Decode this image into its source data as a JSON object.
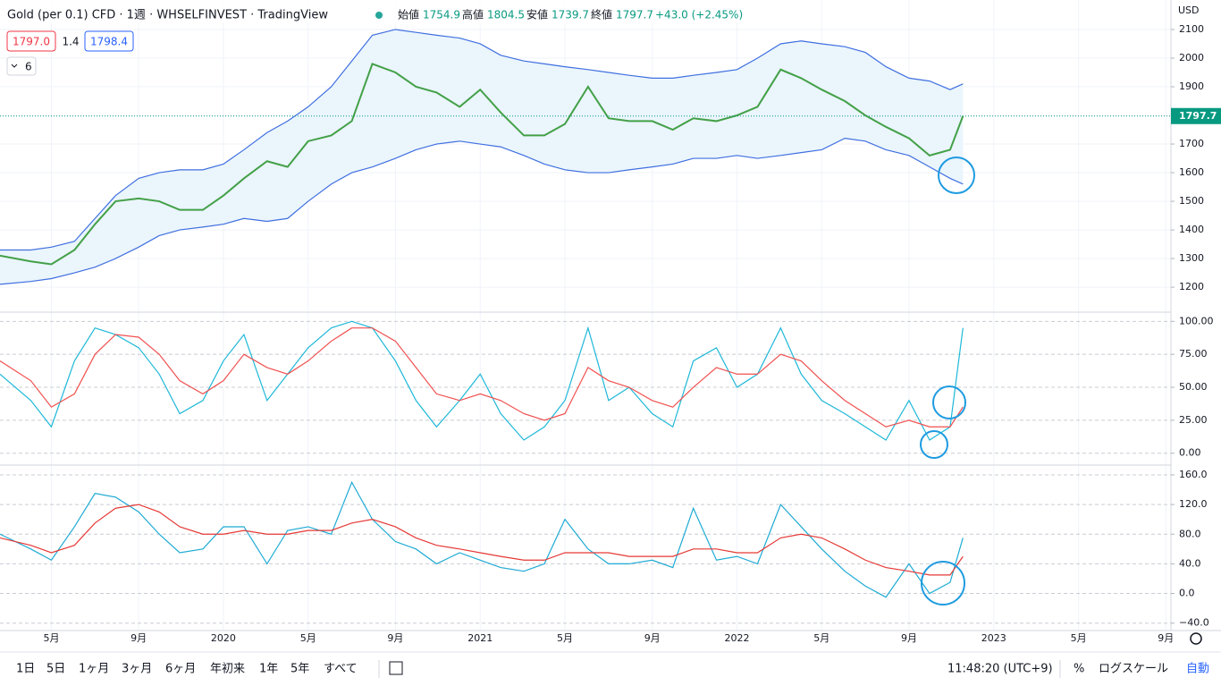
{
  "header": {
    "title": "Gold (per 0.1) CFD · 1週 · WHSELFINVEST · TradingView",
    "open_label": "始値",
    "open": "1754.9",
    "high_label": "高値",
    "high": "1804.5",
    "low_label": "安値",
    "low": "1739.7",
    "close_label": "終値",
    "close": "1797.7",
    "change": "+43.0 (+2.45%)",
    "sell": "1797.0",
    "spread": "1.4",
    "buy": "1798.4",
    "indicators": "6"
  },
  "price_axis": {
    "currency": "USD",
    "tag": "1797.7"
  },
  "toolbar": {
    "ranges": [
      "1日",
      "5日",
      "1ヶ月",
      "3ヶ月",
      "6ヶ月",
      "年初来",
      "1年",
      "5年",
      "すべて"
    ],
    "time": "11:48:20 (UTC+9)",
    "percent": "%",
    "log": "ログスケール",
    "auto": "自動"
  },
  "chart_data": [
    {
      "type": "line",
      "x": [
        2019.13,
        2019.25,
        2019.33,
        2019.42,
        2019.5,
        2019.58,
        2019.67,
        2019.75,
        2019.83,
        2019.92,
        2020.0,
        2020.08,
        2020.17,
        2020.25,
        2020.33,
        2020.42,
        2020.5,
        2020.58,
        2020.67,
        2020.75,
        2020.83,
        2020.92,
        2021.0,
        2021.08,
        2021.17,
        2021.25,
        2021.33,
        2021.42,
        2021.5,
        2021.58,
        2021.67,
        2021.75,
        2021.83,
        2021.92,
        2022.0,
        2022.08,
        2022.17,
        2022.25,
        2022.33,
        2022.42,
        2022.5,
        2022.58,
        2022.67,
        2022.75,
        2022.83,
        2022.88
      ],
      "series": [
        {
          "color": "#43a047",
          "values": [
            1310,
            1290,
            1280,
            1330,
            1420,
            1500,
            1510,
            1500,
            1470,
            1470,
            1520,
            1580,
            1640,
            1620,
            1710,
            1730,
            1780,
            1980,
            1950,
            1900,
            1880,
            1830,
            1890,
            1810,
            1730,
            1730,
            1770,
            1900,
            1790,
            1780,
            1780,
            1750,
            1790,
            1780,
            1800,
            1830,
            1960,
            1930,
            1890,
            1850,
            1800,
            1760,
            1720,
            1660,
            1680,
            1797.7
          ]
        },
        {
          "color": "#3f6fe0",
          "values": [
            1330,
            1330,
            1340,
            1360,
            1440,
            1520,
            1580,
            1600,
            1610,
            1610,
            1630,
            1680,
            1740,
            1780,
            1830,
            1900,
            1990,
            2080,
            2100,
            2090,
            2080,
            2070,
            2050,
            2010,
            1990,
            1980,
            1970,
            1960,
            1950,
            1940,
            1930,
            1930,
            1940,
            1950,
            1960,
            2000,
            2050,
            2060,
            2050,
            2040,
            2020,
            1970,
            1930,
            1920,
            1890,
            1910
          ]
        },
        {
          "color": "#3f6fe0",
          "values": [
            1210,
            1220,
            1230,
            1250,
            1270,
            1300,
            1340,
            1380,
            1400,
            1410,
            1420,
            1440,
            1430,
            1440,
            1500,
            1560,
            1600,
            1620,
            1650,
            1680,
            1700,
            1710,
            1700,
            1690,
            1660,
            1630,
            1610,
            1600,
            1600,
            1610,
            1620,
            1630,
            1650,
            1650,
            1660,
            1650,
            1660,
            1670,
            1680,
            1720,
            1710,
            1680,
            1660,
            1620,
            1580,
            1560
          ]
        }
      ],
      "band_color": "#eaf5fc",
      "xlim": [
        2019.13,
        2023.69
      ],
      "ylim": [
        1116,
        2203
      ],
      "yticks": [
        1200,
        1300,
        1400,
        1500,
        1600,
        1700,
        1800,
        1900,
        2000,
        2100
      ]
    },
    {
      "type": "line",
      "x": [
        2019.13,
        2019.25,
        2019.33,
        2019.42,
        2019.5,
        2019.58,
        2019.67,
        2019.75,
        2019.83,
        2019.92,
        2020.0,
        2020.08,
        2020.17,
        2020.25,
        2020.33,
        2020.42,
        2020.5,
        2020.58,
        2020.67,
        2020.75,
        2020.83,
        2020.92,
        2021.0,
        2021.08,
        2021.17,
        2021.25,
        2021.33,
        2021.42,
        2021.5,
        2021.58,
        2021.67,
        2021.75,
        2021.83,
        2021.92,
        2022.0,
        2022.08,
        2022.17,
        2022.25,
        2022.33,
        2022.42,
        2022.5,
        2022.58,
        2022.67,
        2022.75,
        2022.83,
        2022.88
      ],
      "series": [
        {
          "color": "#1eb8d8",
          "values": [
            60,
            40,
            20,
            70,
            95,
            90,
            80,
            60,
            30,
            40,
            70,
            90,
            40,
            60,
            80,
            95,
            100,
            95,
            70,
            40,
            20,
            40,
            60,
            30,
            10,
            20,
            40,
            95,
            40,
            50,
            30,
            20,
            70,
            80,
            50,
            60,
            95,
            60,
            40,
            30,
            20,
            10,
            40,
            10,
            20,
            95
          ]
        },
        {
          "color": "#f0504f",
          "values": [
            70,
            55,
            35,
            45,
            75,
            90,
            88,
            75,
            55,
            45,
            55,
            75,
            65,
            60,
            70,
            85,
            95,
            95,
            85,
            65,
            45,
            40,
            45,
            40,
            30,
            25,
            30,
            65,
            55,
            50,
            40,
            35,
            50,
            65,
            60,
            60,
            75,
            70,
            55,
            40,
            30,
            20,
            25,
            20,
            20,
            35
          ]
        }
      ],
      "xlim": [
        2019.13,
        2023.69
      ],
      "ylim": [
        -9,
        107
      ],
      "yticks": [
        {
          "value": 0,
          "label": "0.00"
        },
        {
          "value": 25,
          "label": "25.00"
        },
        {
          "value": 50,
          "label": "50.00"
        },
        {
          "value": 75,
          "label": "75.00"
        },
        {
          "value": 100,
          "label": "100.00"
        }
      ]
    },
    {
      "type": "line",
      "x": [
        2019.13,
        2019.25,
        2019.33,
        2019.42,
        2019.5,
        2019.58,
        2019.67,
        2019.75,
        2019.83,
        2019.92,
        2020.0,
        2020.08,
        2020.17,
        2020.25,
        2020.33,
        2020.42,
        2020.5,
        2020.58,
        2020.67,
        2020.75,
        2020.83,
        2020.92,
        2021.0,
        2021.08,
        2021.17,
        2021.25,
        2021.33,
        2021.42,
        2021.5,
        2021.58,
        2021.67,
        2021.75,
        2021.83,
        2021.92,
        2022.0,
        2022.08,
        2022.17,
        2022.25,
        2022.33,
        2022.42,
        2022.5,
        2022.58,
        2022.67,
        2022.75,
        2022.83,
        2022.88
      ],
      "series": [
        {
          "color": "#1eaad4",
          "values": [
            80,
            60,
            45,
            90,
            135,
            130,
            110,
            80,
            55,
            60,
            90,
            90,
            40,
            85,
            90,
            80,
            150,
            100,
            70,
            60,
            40,
            55,
            45,
            35,
            30,
            40,
            100,
            60,
            40,
            40,
            45,
            35,
            115,
            45,
            50,
            40,
            120,
            90,
            60,
            30,
            10,
            -5,
            40,
            0,
            15,
            75
          ]
        },
        {
          "color": "#e53935",
          "values": [
            75,
            65,
            55,
            65,
            95,
            115,
            120,
            110,
            90,
            80,
            80,
            85,
            80,
            80,
            85,
            85,
            95,
            100,
            90,
            75,
            65,
            60,
            55,
            50,
            45,
            45,
            55,
            55,
            55,
            50,
            50,
            50,
            60,
            60,
            55,
            55,
            75,
            80,
            75,
            60,
            45,
            35,
            30,
            25,
            25,
            50
          ]
        }
      ],
      "xlim": [
        2019.13,
        2023.69
      ],
      "ylim": [
        -50,
        172
      ],
      "yticks": [
        {
          "value": -40,
          "label": "−40.0"
        },
        {
          "value": 0,
          "label": "0.0"
        },
        {
          "value": 40,
          "label": "40.0"
        },
        {
          "value": 80,
          "label": "80.0"
        },
        {
          "value": 120,
          "label": "120.0"
        },
        {
          "value": 160,
          "label": "160.0"
        }
      ],
      "xticks": [
        {
          "value": 2019.33,
          "label": "5月"
        },
        {
          "value": 2019.67,
          "label": "9月"
        },
        2020,
        {
          "value": 2020.33,
          "label": "5月"
        },
        {
          "value": 2020.67,
          "label": "9月"
        },
        2021,
        {
          "value": 2021.33,
          "label": "5月"
        },
        {
          "value": 2021.67,
          "label": "9月"
        },
        2022,
        {
          "value": 2022.33,
          "label": "5月"
        },
        {
          "value": 2022.67,
          "label": "9月"
        },
        2023,
        {
          "value": 2023.33,
          "label": "5月"
        },
        {
          "value": 2023.67,
          "label": "9月"
        }
      ]
    }
  ]
}
